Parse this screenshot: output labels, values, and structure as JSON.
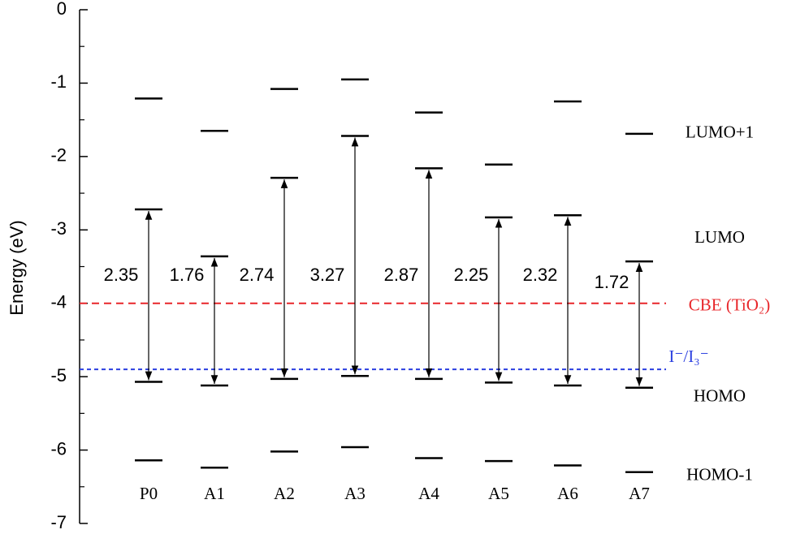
{
  "chart_data": {
    "type": "energy-levels",
    "y_label": "Energy (eV)",
    "ylim": [
      -7,
      0
    ],
    "yticks": [
      0,
      -1,
      -2,
      -3,
      -4,
      -5,
      -6,
      -7
    ],
    "categories": [
      "P0",
      "A1",
      "A2",
      "A3",
      "A4",
      "A5",
      "A6",
      "A7"
    ],
    "series": [
      {
        "name": "LUMO+1",
        "color": "#000000",
        "values": [
          -1.21,
          -1.65,
          -1.08,
          -0.95,
          -1.4,
          -2.11,
          -1.25,
          -1.69
        ]
      },
      {
        "name": "LUMO",
        "color": "#000000",
        "values": [
          -2.72,
          -3.36,
          -2.29,
          -1.72,
          -2.16,
          -2.83,
          -2.8,
          -3.43
        ]
      },
      {
        "name": "HOMO",
        "color": "#000000",
        "values": [
          -5.07,
          -5.12,
          -5.03,
          -4.99,
          -5.03,
          -5.08,
          -5.12,
          -5.15
        ]
      },
      {
        "name": "HOMO-1",
        "color": "#000000",
        "values": [
          -6.14,
          -6.24,
          -6.02,
          -5.96,
          -6.11,
          -6.15,
          -6.21,
          -6.3
        ]
      }
    ],
    "gaps": [
      2.35,
      1.76,
      2.74,
      3.27,
      2.87,
      2.25,
      2.32,
      1.72
    ],
    "reference_lines": [
      {
        "label": "CBE (TiO₂)",
        "value": -4.0,
        "color": "#e8262a"
      },
      {
        "label": "I⁻/I₃⁻",
        "value": -4.9,
        "color": "#2b3fe0"
      }
    ]
  }
}
